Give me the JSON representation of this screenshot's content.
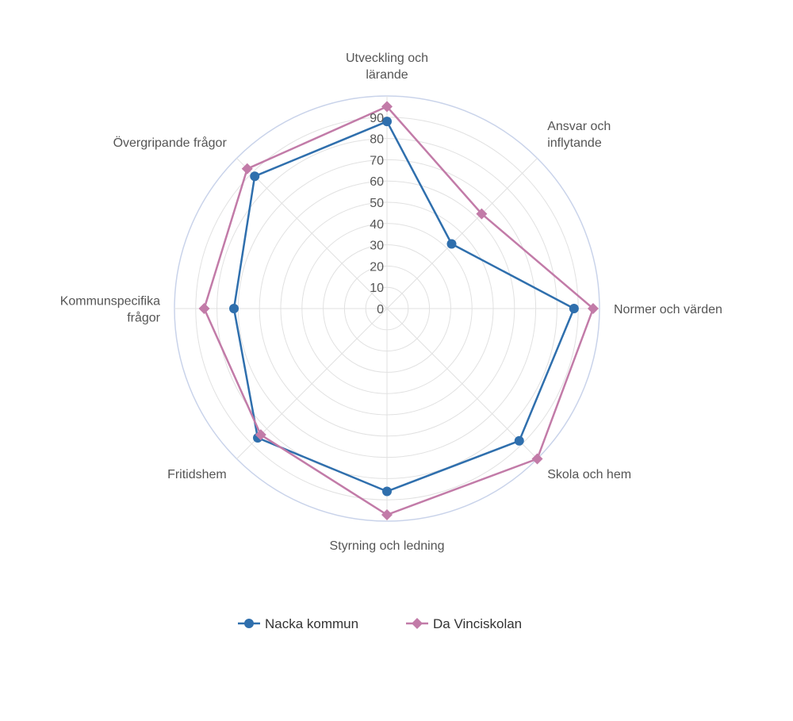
{
  "chart_data": {
    "type": "radar",
    "categories": [
      [
        "Utveckling och",
        "lärande"
      ],
      [
        "Ansvar och",
        "inflytande"
      ],
      [
        "Normer och värden"
      ],
      [
        "Skola och hem"
      ],
      [
        "Styrning och ledning"
      ],
      [
        "Fritidshem"
      ],
      [
        "Kommunspecifika",
        "frågor"
      ],
      [
        "Övergripande frågor"
      ]
    ],
    "radial_ticks": [
      "0",
      "10",
      "20",
      "30",
      "40",
      "50",
      "60",
      "70",
      "80",
      "90"
    ],
    "rlim": [
      0,
      100
    ],
    "grid": true,
    "legend_position": "bottom",
    "series": [
      {
        "name": "Nacka kommun",
        "color": "#2f6fad",
        "marker": "circle",
        "values": [
          88,
          43,
          88,
          88,
          86,
          86,
          72,
          88
        ]
      },
      {
        "name": "Da Vinciskolan",
        "color": "#c27ba8",
        "marker": "diamond",
        "values": [
          95,
          63,
          97,
          100,
          97,
          84,
          86,
          93
        ]
      }
    ]
  }
}
